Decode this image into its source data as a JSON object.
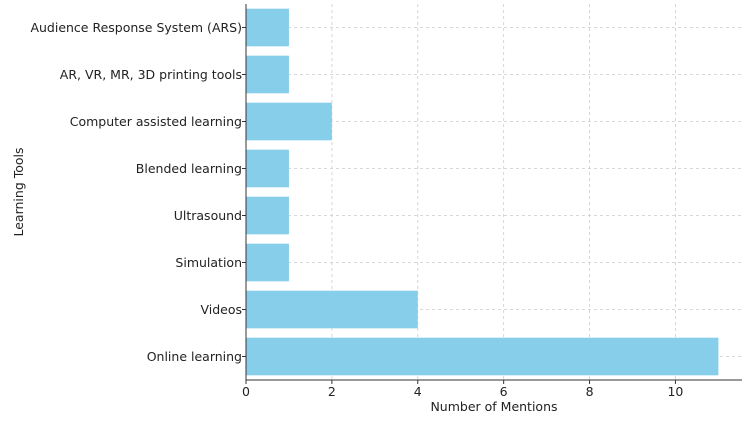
{
  "chart_data": {
    "type": "bar",
    "orientation": "horizontal",
    "title": "",
    "xlabel": "Number of Mentions",
    "ylabel": "Learning Tools",
    "categories": [
      "Online learning",
      "Videos",
      "Simulation",
      "Ultrasound",
      "Blended learning",
      "Computer assisted learning",
      "AR, VR, MR, 3D printing tools",
      "Audience Response System (ARS)"
    ],
    "values": [
      11,
      4,
      1,
      1,
      1,
      2,
      1,
      1
    ],
    "xlim": [
      0,
      11.55
    ],
    "xticks": [
      0,
      2,
      4,
      6,
      8,
      10
    ],
    "grid": true,
    "bar_color": "#87CEEB"
  }
}
